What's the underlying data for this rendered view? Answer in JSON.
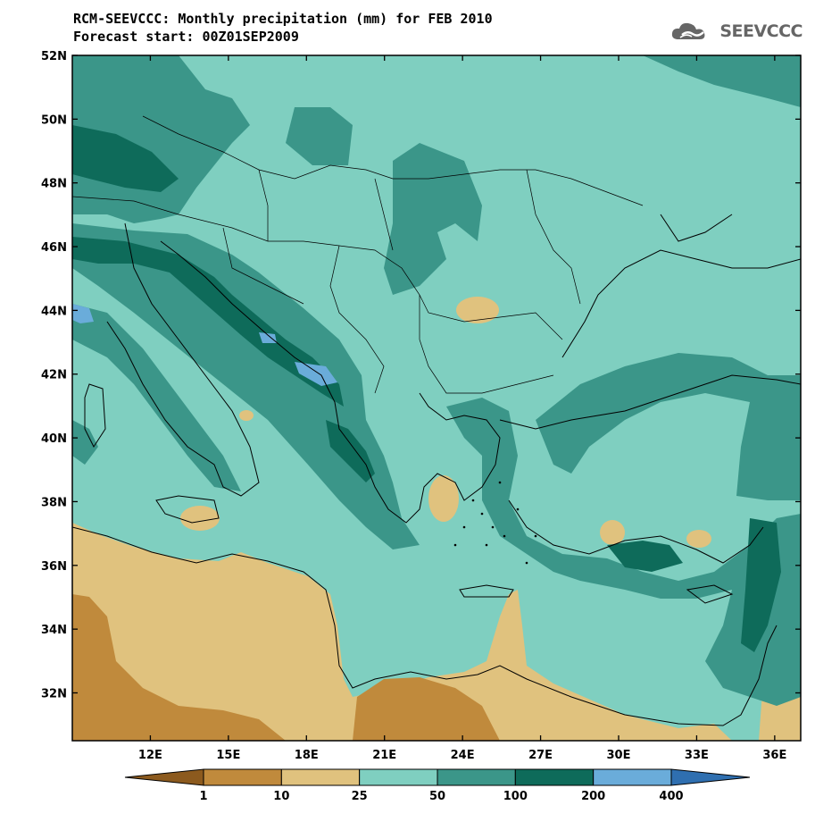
{
  "title": {
    "line1": "RCM-SEEVCCC: Monthly precipitation (mm) for FEB 2010",
    "line2": "Forecast start: 00Z01SEP2009"
  },
  "logo": {
    "text": "SEEVCCC",
    "icon": "cloud-icon",
    "color": "#666666"
  },
  "map": {
    "lon_range": [
      9,
      37
    ],
    "lat_range": [
      30.5,
      52
    ],
    "lat_ticks": [
      {
        "value": 52,
        "label": "52N"
      },
      {
        "value": 50,
        "label": "50N"
      },
      {
        "value": 48,
        "label": "48N"
      },
      {
        "value": 46,
        "label": "46N"
      },
      {
        "value": 44,
        "label": "44N"
      },
      {
        "value": 42,
        "label": "42N"
      },
      {
        "value": 40,
        "label": "40N"
      },
      {
        "value": 38,
        "label": "38N"
      },
      {
        "value": 36,
        "label": "36N"
      },
      {
        "value": 34,
        "label": "34N"
      },
      {
        "value": 32,
        "label": "32N"
      }
    ],
    "lon_ticks": [
      {
        "value": 12,
        "label": "12E"
      },
      {
        "value": 15,
        "label": "15E"
      },
      {
        "value": 18,
        "label": "18E"
      },
      {
        "value": 21,
        "label": "21E"
      },
      {
        "value": 24,
        "label": "24E"
      },
      {
        "value": 27,
        "label": "27E"
      },
      {
        "value": 30,
        "label": "30E"
      },
      {
        "value": 33,
        "label": "33E"
      },
      {
        "value": 36,
        "label": "36E"
      }
    ]
  },
  "colorbar": {
    "colors": [
      "#8c5a1e",
      "#c08a3c",
      "#e0c27e",
      "#7fcfc0",
      "#3b9689",
      "#0e6b5a",
      "#6aacda",
      "#2f6fb0"
    ],
    "labels": [
      "1",
      "10",
      "25",
      "50",
      "100",
      "200",
      "400"
    ]
  }
}
